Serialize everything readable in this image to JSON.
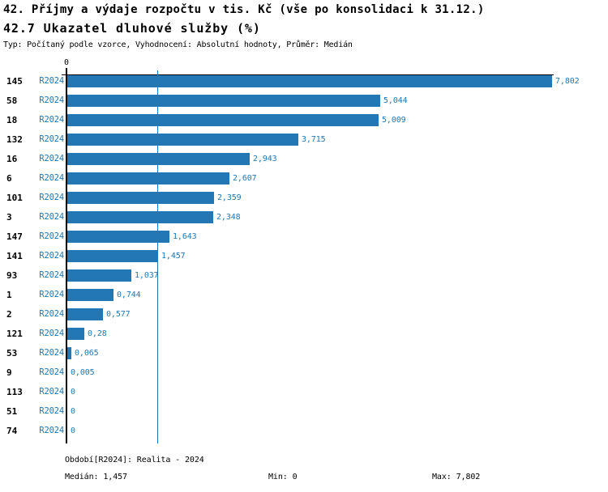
{
  "header": {
    "title_line1": "42. Příjmy a výdaje rozpočtu v tis. Kč (vše po konsolidaci k 31.12.)",
    "title_line2": "42.7 Ukazatel dluhové služby (%)",
    "meta": "Typ: Počítaný podle vzorce, Vyhodnocení: Absolutní hodnoty, Průměr: Medián"
  },
  "chart_data": {
    "type": "bar",
    "orientation": "horizontal",
    "series_label": "R2024",
    "categories": [
      "145",
      "58",
      "18",
      "132",
      "16",
      "6",
      "101",
      "3",
      "147",
      "141",
      "93",
      "1",
      "2",
      "121",
      "53",
      "9",
      "113",
      "51",
      "74"
    ],
    "values": [
      7.802,
      5.044,
      5.009,
      3.715,
      2.943,
      2.607,
      2.359,
      2.348,
      1.643,
      1.457,
      1.037,
      0.744,
      0.577,
      0.28,
      0.065,
      0.005,
      0,
      0,
      0
    ],
    "value_labels": [
      "7,802",
      "5,044",
      "5,009",
      "3,715",
      "2,943",
      "2,607",
      "2,359",
      "2,348",
      "1,643",
      "1,457",
      "1,037",
      "0,744",
      "0,577",
      "0,28",
      "0,065",
      "0,005",
      "0",
      "0",
      "0"
    ],
    "x_axis": {
      "zero_tick_label": "0",
      "min": 0,
      "max": 7.802,
      "median_line_value": 1.457,
      "grid": "median-line-only"
    },
    "legend_position": "none"
  },
  "footer": {
    "period": "Období[R2024]: Realita - 2024",
    "median": "Medián: 1,457",
    "min": "Min: 0",
    "max": "Max: 7,802"
  },
  "colors": {
    "bar": "#2277b4",
    "text_blue": "#1f77b4",
    "axis": "#000000",
    "background": "#ffffff"
  }
}
